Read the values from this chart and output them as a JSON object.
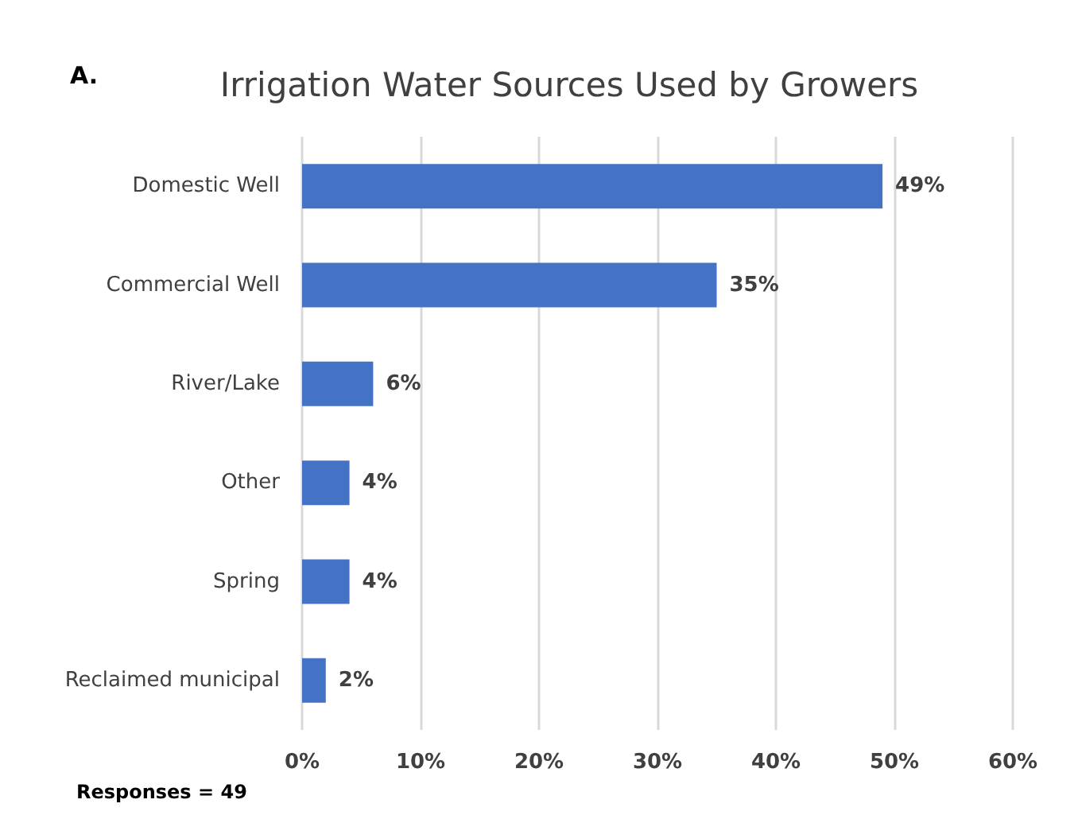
{
  "chart_data": {
    "type": "bar",
    "orientation": "horizontal",
    "title": "Irrigation Water Sources Used by Growers",
    "categories": [
      "Domestic Well",
      "Commercial Well",
      "River/Lake",
      "Other",
      "Spring",
      "Reclaimed municipal"
    ],
    "values": [
      49,
      35,
      6,
      4,
      4,
      2
    ],
    "value_labels": [
      "49%",
      "35%",
      "6%",
      "4%",
      "4%",
      "2%"
    ],
    "color": "#4472c4",
    "xlim": [
      0,
      60
    ],
    "xticks": [
      {
        "value": 0,
        "label": "0%"
      },
      {
        "value": 10,
        "label": "10%"
      },
      {
        "value": 20,
        "label": "20%"
      },
      {
        "value": 30,
        "label": "30%"
      },
      {
        "value": 40,
        "label": "40%"
      },
      {
        "value": 50,
        "label": "50%"
      },
      {
        "value": 60,
        "label": "60%"
      }
    ],
    "grid": "x",
    "annotations": [
      "A.",
      "Responses = 49"
    ]
  }
}
